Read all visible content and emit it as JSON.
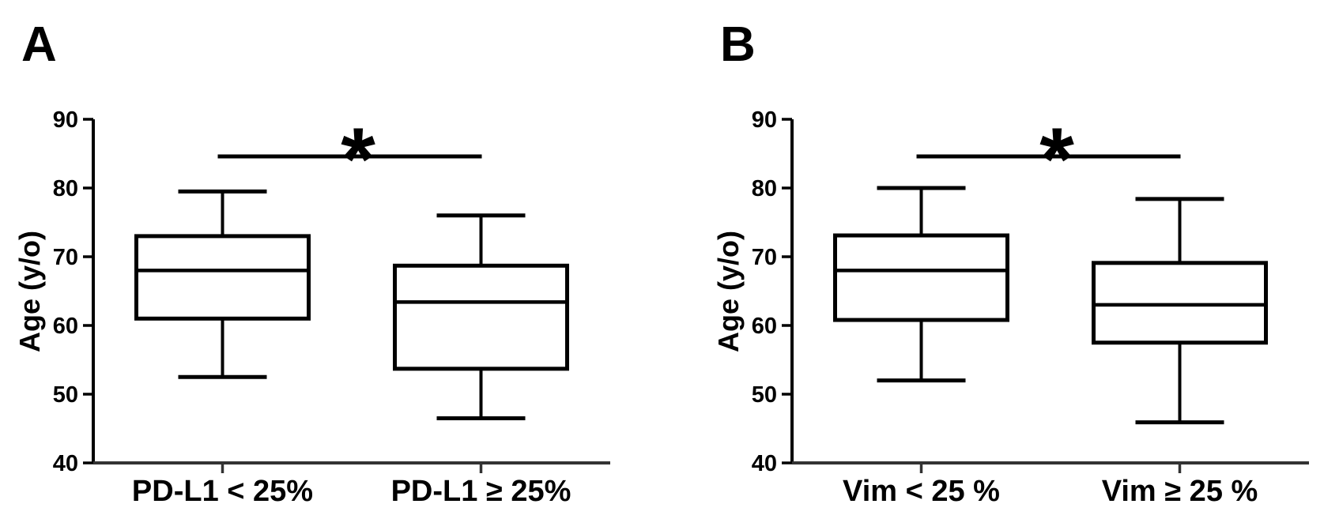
{
  "figure": {
    "description": "Two-panel box-and-whisker figure comparing patient age between marker expression groups",
    "background_color": "#ffffff",
    "ink_color": "#000000",
    "panel_letters": [
      "A",
      "B"
    ]
  },
  "chart_data": [
    {
      "type": "box",
      "panel_label": "A",
      "title": "",
      "xlabel": "",
      "ylabel": "Age (y/o)",
      "ylim": [
        40,
        90
      ],
      "yticks": [
        40,
        50,
        60,
        70,
        80,
        90
      ],
      "grid": false,
      "legend": false,
      "categories": [
        "PD-L1 < 25%",
        "PD-L1 ≥ 25%"
      ],
      "series": [
        {
          "name": "PD-L1 < 25%",
          "whisker_low": 52.5,
          "q1": 61,
          "median": 68,
          "q3": 73,
          "whisker_high": 79.5
        },
        {
          "name": "PD-L1 ≥ 25%",
          "whisker_low": 46.5,
          "q1": 53.7,
          "median": 63.4,
          "q3": 68.7,
          "whisker_high": 76
        }
      ],
      "annotations": [
        {
          "type": "significance_bar",
          "label": "*",
          "y": 84.6,
          "between_categories": [
            0,
            1
          ]
        }
      ]
    },
    {
      "type": "box",
      "panel_label": "B",
      "title": "",
      "xlabel": "",
      "ylabel": "Age (y/o)",
      "ylim": [
        40,
        90
      ],
      "yticks": [
        40,
        50,
        60,
        70,
        80,
        90
      ],
      "grid": false,
      "legend": false,
      "categories": [
        "Vim < 25 %",
        "Vim ≥ 25 %"
      ],
      "series": [
        {
          "name": "Vim < 25 %",
          "whisker_low": 52,
          "q1": 60.8,
          "median": 68,
          "q3": 73.1,
          "whisker_high": 80
        },
        {
          "name": "Vim ≥ 25 %",
          "whisker_low": 45.9,
          "q1": 57.5,
          "median": 63,
          "q3": 69.1,
          "whisker_high": 78.4
        }
      ],
      "annotations": [
        {
          "type": "significance_bar",
          "label": "*",
          "y": 84.6,
          "between_categories": [
            0,
            1
          ]
        }
      ]
    }
  ]
}
